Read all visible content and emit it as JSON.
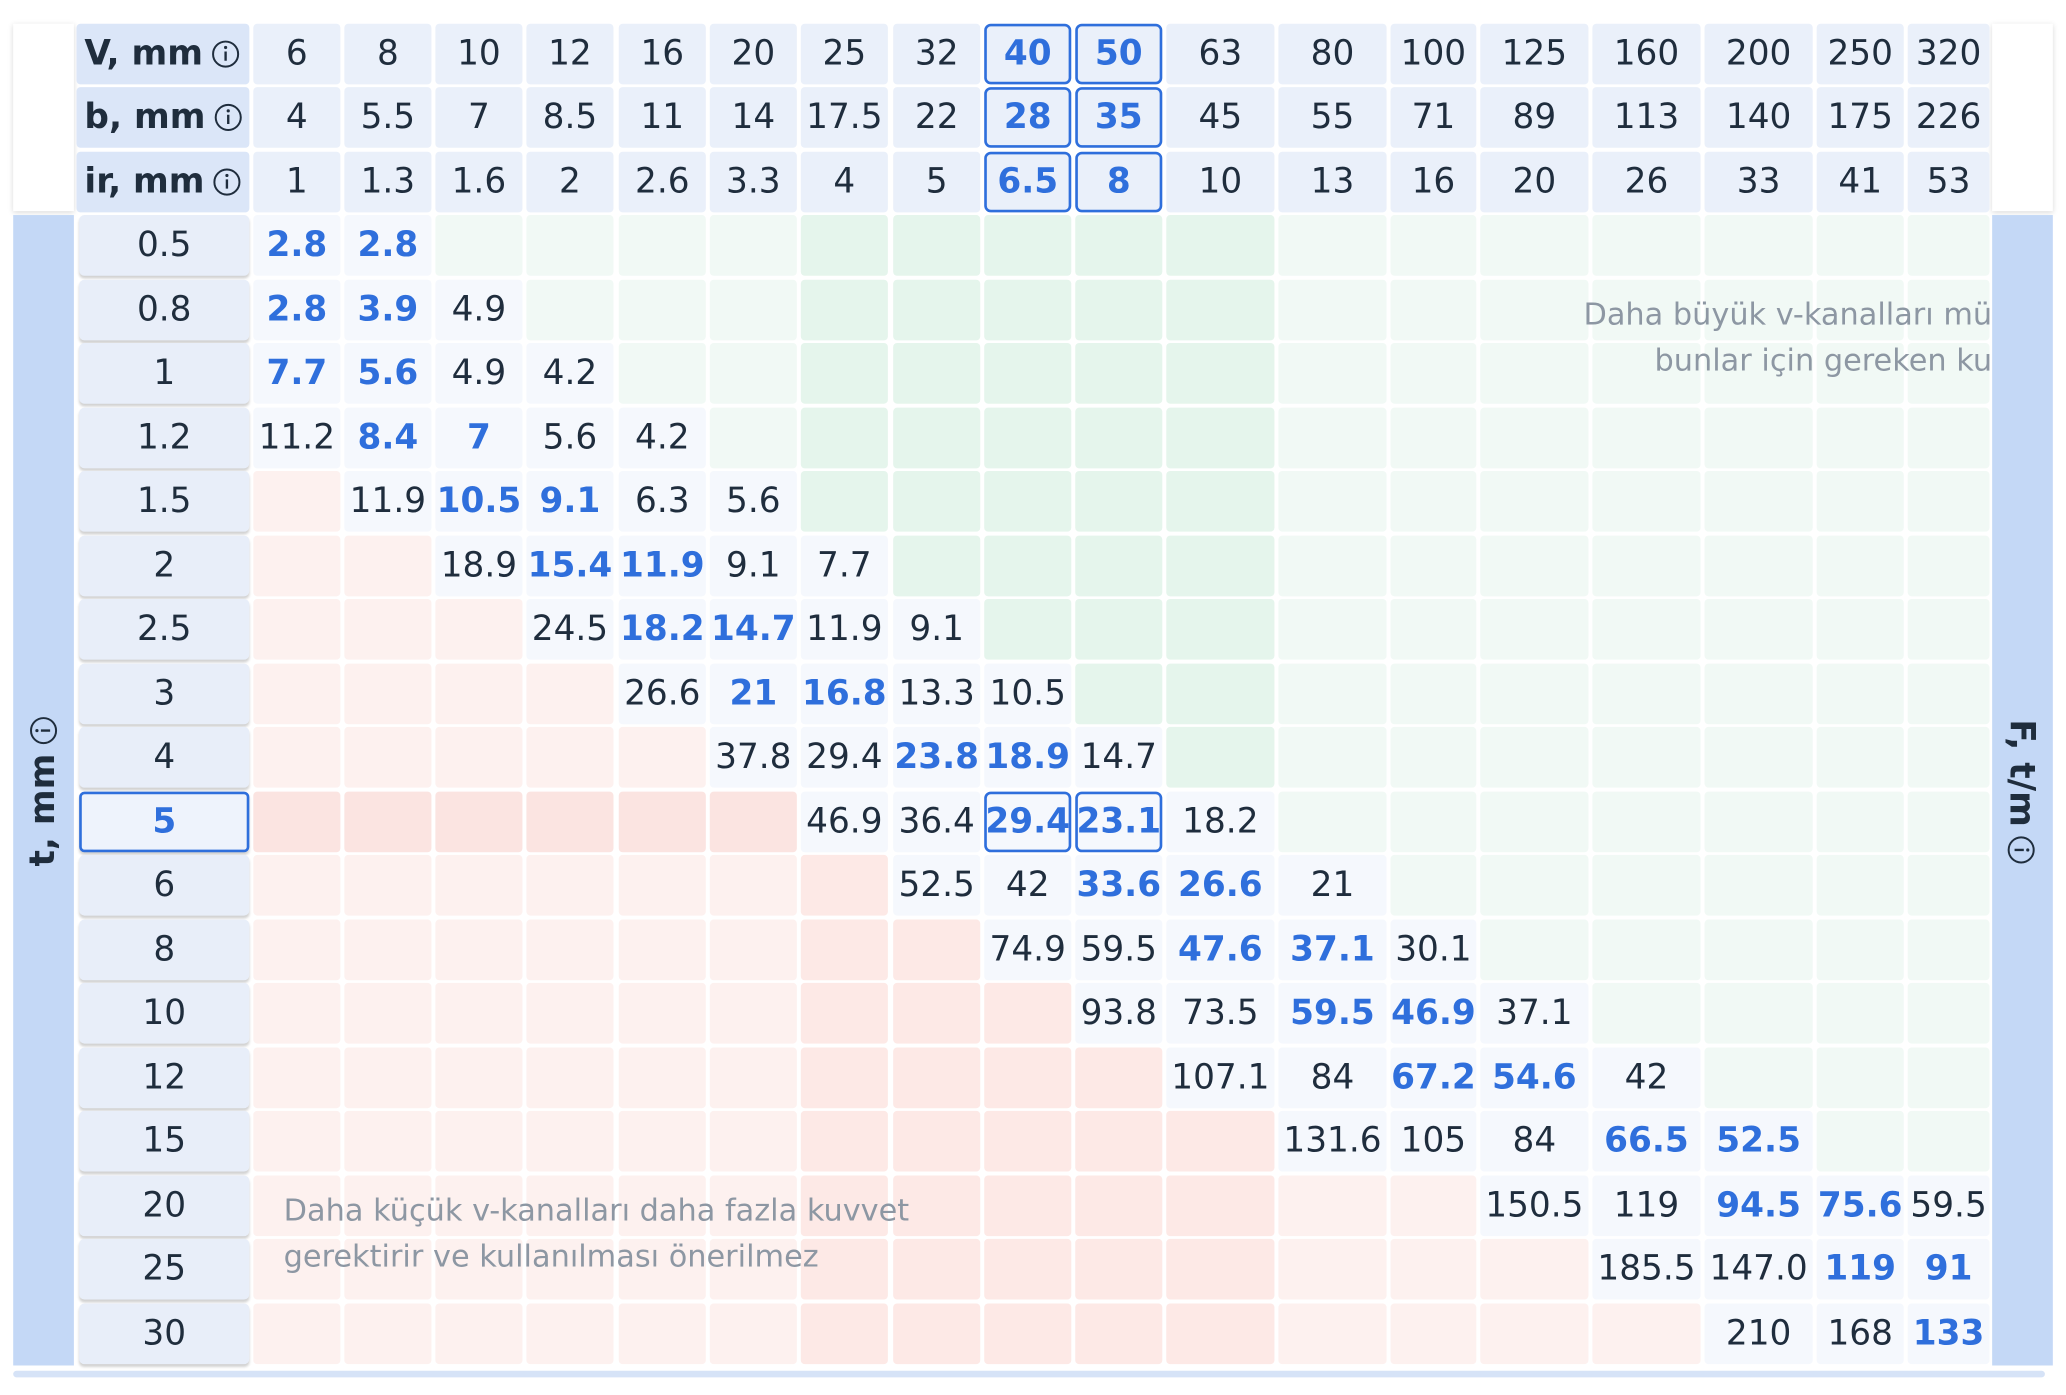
{
  "header_rows": [
    {
      "label": "V, mm",
      "values": [
        "6",
        "8",
        "10",
        "12",
        "16",
        "20",
        "25",
        "32",
        {
          "text": "40",
          "selected": true
        },
        {
          "text": "50",
          "selected": true
        },
        "63",
        "80",
        "100",
        "125",
        "160",
        "200",
        "250",
        "320"
      ]
    },
    {
      "label": "b, mm",
      "values": [
        "4",
        "5.5",
        "7",
        "8.5",
        "11",
        "14",
        "17.5",
        "22",
        {
          "text": "28",
          "selected": true
        },
        {
          "text": "35",
          "selected": true
        },
        "45",
        "55",
        "71",
        "89",
        "113",
        "140",
        "175",
        "226"
      ]
    },
    {
      "label": "ir, mm",
      "values": [
        "1",
        "1.3",
        "1.6",
        "2",
        "2.6",
        "3.3",
        "4",
        "5",
        {
          "text": "6.5",
          "selected": true
        },
        {
          "text": "8",
          "selected": true
        },
        "10",
        "13",
        "16",
        "20",
        "26",
        "33",
        "41",
        "53"
      ]
    }
  ],
  "row_axis_label": "t, mm",
  "value_axis_label": "F, t/m",
  "notes": {
    "top_right": [
      "Daha büyük v-kanalları mü",
      "bunlar için gereken ku"
    ],
    "bottom_left": [
      "Daha küçük v-kanalları daha fazla kuvvet",
      "gerektirir ve kullanılması önerilmez"
    ]
  },
  "rows": [
    {
      "t": "0.5",
      "cells": [
        {
          "text": "2.8",
          "bold": true
        },
        {
          "text": "2.8",
          "bold": true
        },
        null,
        null,
        null,
        null,
        null,
        null,
        null,
        null,
        null,
        null,
        null,
        null,
        null,
        null,
        null,
        null
      ]
    },
    {
      "t": "0.8",
      "cells": [
        {
          "text": "2.8",
          "bold": true
        },
        {
          "text": "3.9",
          "bold": true
        },
        "4.9",
        null,
        null,
        null,
        null,
        null,
        null,
        null,
        null,
        null,
        null,
        null,
        null,
        null,
        null,
        null
      ]
    },
    {
      "t": "1",
      "cells": [
        {
          "text": "7.7",
          "bold": true
        },
        {
          "text": "5.6",
          "bold": true
        },
        "4.9",
        "4.2",
        null,
        null,
        null,
        null,
        null,
        null,
        null,
        null,
        null,
        null,
        null,
        null,
        null,
        null
      ]
    },
    {
      "t": "1.2",
      "cells": [
        "11.2",
        {
          "text": "8.4",
          "bold": true
        },
        {
          "text": "7",
          "bold": true
        },
        "5.6",
        "4.2",
        null,
        null,
        null,
        null,
        null,
        null,
        null,
        null,
        null,
        null,
        null,
        null,
        null
      ]
    },
    {
      "t": "1.5",
      "cells": [
        null,
        "11.9",
        {
          "text": "10.5",
          "bold": true
        },
        {
          "text": "9.1",
          "bold": true
        },
        "6.3",
        "5.6",
        null,
        null,
        null,
        null,
        null,
        null,
        null,
        null,
        null,
        null,
        null,
        null
      ]
    },
    {
      "t": "2",
      "cells": [
        null,
        null,
        "18.9",
        {
          "text": "15.4",
          "bold": true
        },
        {
          "text": "11.9",
          "bold": true
        },
        "9.1",
        "7.7",
        null,
        null,
        null,
        null,
        null,
        null,
        null,
        null,
        null,
        null,
        null
      ]
    },
    {
      "t": "2.5",
      "cells": [
        null,
        null,
        null,
        "24.5",
        {
          "text": "18.2",
          "bold": true
        },
        {
          "text": "14.7",
          "bold": true
        },
        "11.9",
        "9.1",
        null,
        null,
        null,
        null,
        null,
        null,
        null,
        null,
        null,
        null
      ]
    },
    {
      "t": "3",
      "cells": [
        null,
        null,
        null,
        null,
        "26.6",
        {
          "text": "21",
          "bold": true
        },
        {
          "text": "16.8",
          "bold": true
        },
        "13.3",
        "10.5",
        null,
        null,
        null,
        null,
        null,
        null,
        null,
        null,
        null
      ]
    },
    {
      "t": "4",
      "cells": [
        null,
        null,
        null,
        null,
        null,
        "37.8",
        "29.4",
        {
          "text": "23.8",
          "bold": true
        },
        {
          "text": "18.9",
          "bold": true
        },
        "14.7",
        null,
        null,
        null,
        null,
        null,
        null,
        null,
        null
      ]
    },
    {
      "t": "5",
      "selected": true,
      "cells": [
        null,
        null,
        null,
        null,
        null,
        null,
        "46.9",
        "36.4",
        {
          "text": "29.4",
          "bold": true,
          "selected": true
        },
        {
          "text": "23.1",
          "bold": true,
          "selected": true
        },
        "18.2",
        null,
        null,
        null,
        null,
        null,
        null,
        null
      ]
    },
    {
      "t": "6",
      "cells": [
        null,
        null,
        null,
        null,
        null,
        null,
        null,
        "52.5",
        "42",
        {
          "text": "33.6",
          "bold": true
        },
        {
          "text": "26.6",
          "bold": true
        },
        "21",
        null,
        null,
        null,
        null,
        null,
        null
      ]
    },
    {
      "t": "8",
      "cells": [
        null,
        null,
        null,
        null,
        null,
        null,
        null,
        null,
        "74.9",
        "59.5",
        {
          "text": "47.6",
          "bold": true
        },
        {
          "text": "37.1",
          "bold": true
        },
        "30.1",
        null,
        null,
        null,
        null,
        null
      ]
    },
    {
      "t": "10",
      "cells": [
        null,
        null,
        null,
        null,
        null,
        null,
        null,
        null,
        null,
        "93.8",
        "73.5",
        {
          "text": "59.5",
          "bold": true
        },
        {
          "text": "46.9",
          "bold": true
        },
        "37.1",
        null,
        null,
        null,
        null
      ]
    },
    {
      "t": "12",
      "cells": [
        null,
        null,
        null,
        null,
        null,
        null,
        null,
        null,
        null,
        null,
        "107.1",
        "84",
        {
          "text": "67.2",
          "bold": true
        },
        {
          "text": "54.6",
          "bold": true
        },
        "42",
        null,
        null,
        null
      ]
    },
    {
      "t": "15",
      "cells": [
        null,
        null,
        null,
        null,
        null,
        null,
        null,
        null,
        null,
        null,
        null,
        "131.6",
        "105",
        "84",
        {
          "text": "66.5",
          "bold": true
        },
        {
          "text": "52.5",
          "bold": true
        },
        null,
        null
      ]
    },
    {
      "t": "20",
      "cells": [
        null,
        null,
        null,
        null,
        null,
        null,
        null,
        null,
        null,
        null,
        null,
        null,
        null,
        "150.5",
        "119",
        {
          "text": "94.5",
          "bold": true
        },
        {
          "text": "75.6",
          "bold": true
        },
        "59.5"
      ]
    },
    {
      "t": "25",
      "cells": [
        null,
        null,
        null,
        null,
        null,
        null,
        null,
        null,
        null,
        null,
        null,
        null,
        null,
        null,
        "185.5",
        "147.0",
        {
          "text": "119",
          "bold": true
        },
        {
          "text": "91",
          "bold": true
        }
      ]
    },
    {
      "t": "30",
      "cells": [
        null,
        null,
        null,
        null,
        null,
        null,
        null,
        null,
        null,
        null,
        null,
        null,
        null,
        null,
        null,
        "210",
        "168",
        {
          "text": "133",
          "bold": true
        }
      ]
    }
  ]
}
